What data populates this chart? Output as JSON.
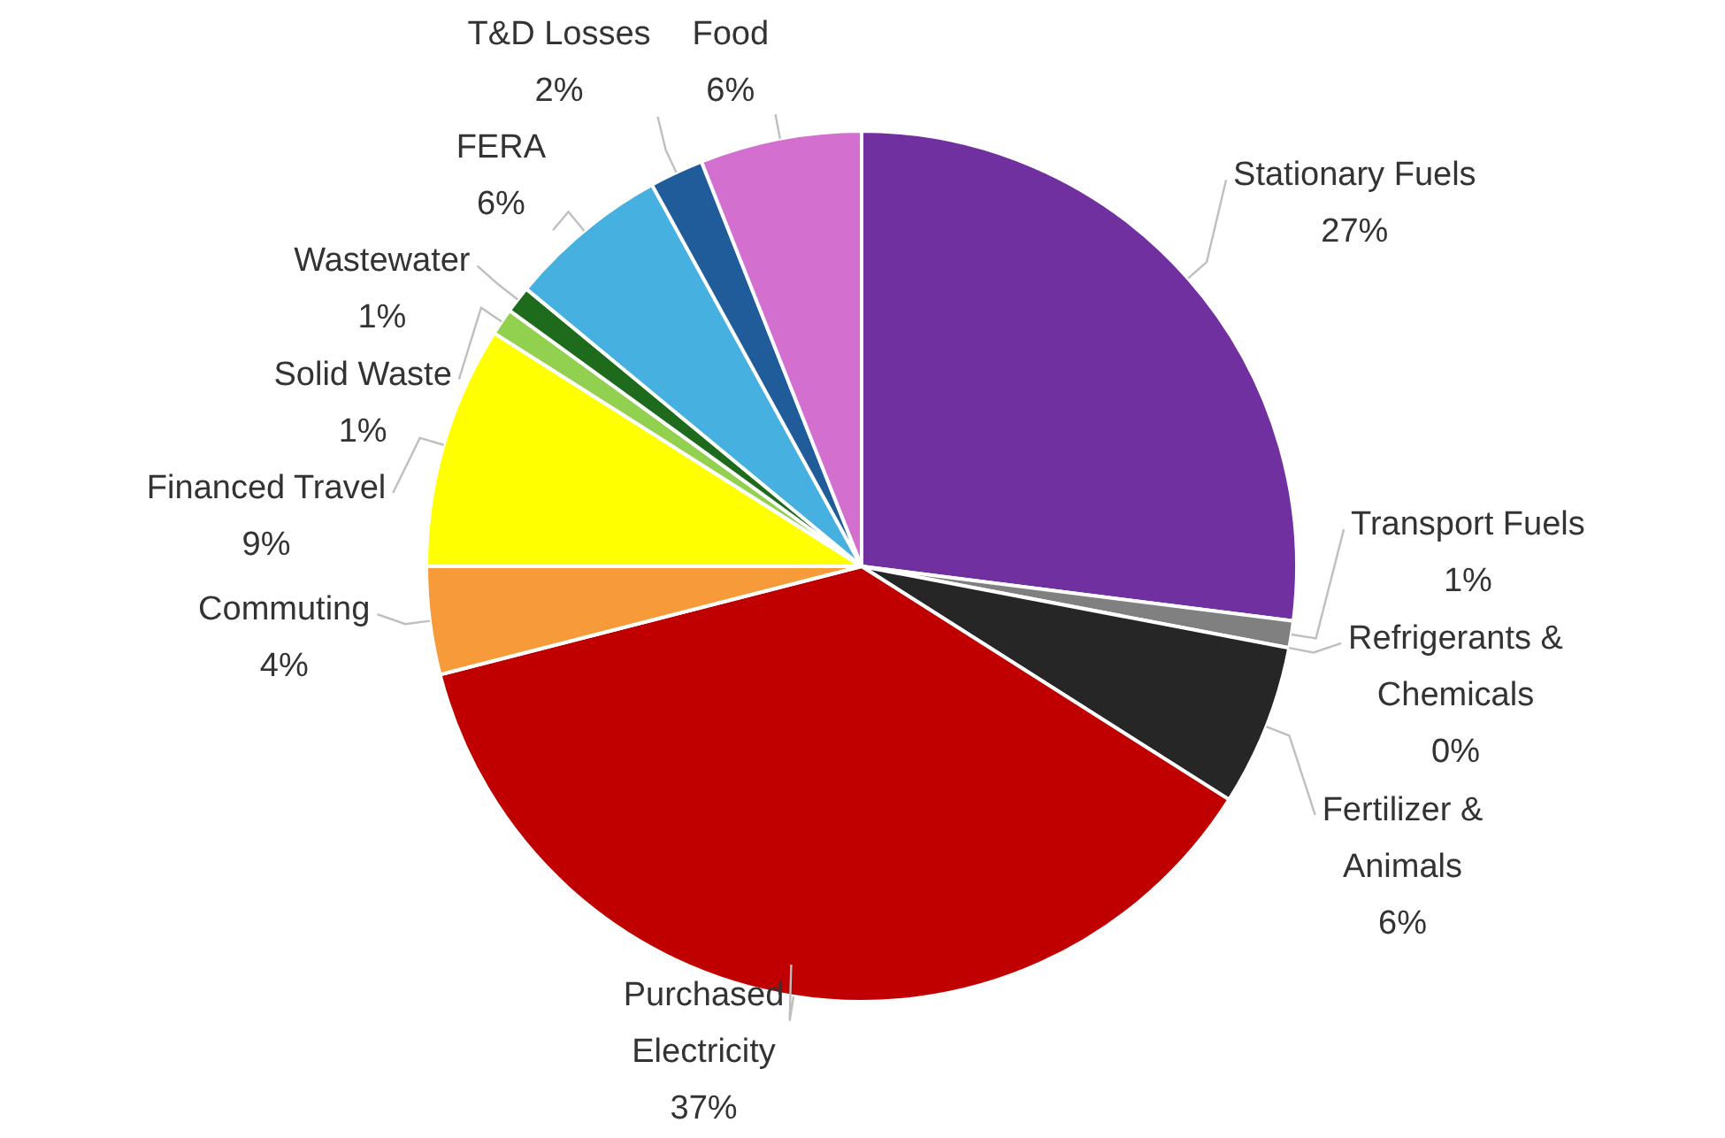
{
  "chart_data": {
    "type": "pie",
    "categories": [
      "Stationary Fuels",
      "Transport Fuels",
      "Refrigerants & Chemicals",
      "Fertilizer & Animals",
      "Purchased Electricity",
      "Commuting",
      "Financed Travel",
      "Solid Waste",
      "Wastewater",
      "FERA",
      "T&D Losses",
      "Food"
    ],
    "values": [
      27,
      1,
      0,
      6,
      37,
      4,
      9,
      1,
      1,
      6,
      2,
      6
    ],
    "value_labels": [
      "27%",
      "1%",
      "0%",
      "6%",
      "37%",
      "4%",
      "9%",
      "1%",
      "1%",
      "6%",
      "2%",
      "6%"
    ],
    "colors": [
      "#7030a0",
      "#808080",
      "#d9d9d9",
      "#262626",
      "#c00000",
      "#f79a3a",
      "#ffff00",
      "#92d050",
      "#1e6b1e",
      "#46b0e0",
      "#1f5c99",
      "#d36fcf"
    ]
  }
}
